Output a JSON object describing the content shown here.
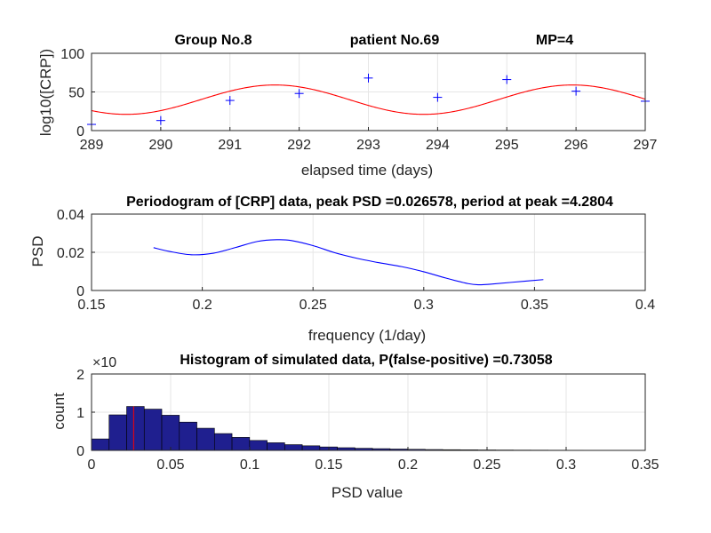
{
  "chart_data": [
    {
      "type": "scatter+line",
      "title_parts": [
        "Group No.8",
        "patient No.69",
        "MP=4"
      ],
      "xlabel": "elapsed time (days)",
      "ylabel": "log10([CRP])",
      "xlim": [
        289,
        297
      ],
      "ylim": [
        0,
        100
      ],
      "xticks": [
        "289",
        "290",
        "291",
        "292",
        "293",
        "294",
        "295",
        "296",
        "297"
      ],
      "yticks": [
        "0",
        "50",
        "100"
      ],
      "points": {
        "name": "CRP measurements",
        "x": [
          289,
          290,
          291,
          292,
          293,
          294,
          295,
          296,
          297
        ],
        "y": [
          8,
          13,
          39,
          48,
          68,
          43,
          66,
          51,
          38
        ]
      },
      "fit": {
        "name": "sinusoid fit",
        "mean": 40,
        "amplitude": 19,
        "period": 4.3,
        "peak_at": 291.65
      },
      "colors": {
        "points": "#0000ff",
        "fit": "#ff0000"
      }
    },
    {
      "type": "line",
      "title": "Periodogram of [CRP] data, peak PSD =0.026578, period at peak =4.2804",
      "xlabel": "frequency (1/day)",
      "ylabel": "PSD",
      "xlim": [
        0.15,
        0.4
      ],
      "ylim": [
        0,
        0.04
      ],
      "xticks": [
        "0.15",
        "0.2",
        "0.25",
        "0.3",
        "0.35",
        "0.4"
      ],
      "yticks": [
        "0",
        "0.02",
        "0.04"
      ],
      "series": [
        {
          "name": "PSD",
          "x": [
            0.178,
            0.185,
            0.195,
            0.205,
            0.215,
            0.225,
            0.2336,
            0.24,
            0.25,
            0.26,
            0.27,
            0.28,
            0.29,
            0.3,
            0.31,
            0.32,
            0.325,
            0.33,
            0.34,
            0.354
          ],
          "y": [
            0.0224,
            0.0205,
            0.0187,
            0.0195,
            0.0225,
            0.0257,
            0.02658,
            0.0262,
            0.0235,
            0.0197,
            0.0168,
            0.0145,
            0.0125,
            0.0098,
            0.0065,
            0.0036,
            0.003,
            0.0033,
            0.0043,
            0.0057
          ]
        }
      ],
      "colors": {
        "line": "#0000ff"
      }
    },
    {
      "type": "histogram",
      "title": "Histogram of simulated data, P(false-positive) =0.73058",
      "xlabel": "PSD value",
      "ylabel": "count",
      "y_exponent": "×10",
      "xlim": [
        0,
        0.35
      ],
      "ylim": [
        0,
        2
      ],
      "xticks": [
        "0",
        "0.05",
        "0.1",
        "0.15",
        "0.2",
        "0.25",
        "0.3",
        "0.35"
      ],
      "yticks": [
        "0",
        "1",
        "2"
      ],
      "bin_width": 0.0111,
      "bin_start": 0,
      "counts": [
        0.3,
        0.93,
        1.15,
        1.08,
        0.92,
        0.74,
        0.58,
        0.44,
        0.34,
        0.26,
        0.2,
        0.15,
        0.12,
        0.09,
        0.07,
        0.055,
        0.045,
        0.035,
        0.028,
        0.022,
        0.018,
        0.015,
        0.012,
        0.01,
        0.008,
        0.007,
        0.006,
        0.005,
        0.004,
        0.004,
        0.003
      ],
      "marker_x": 0.0266,
      "colors": {
        "bars": "#1f1f8f",
        "marker": "#ff0000"
      }
    }
  ]
}
